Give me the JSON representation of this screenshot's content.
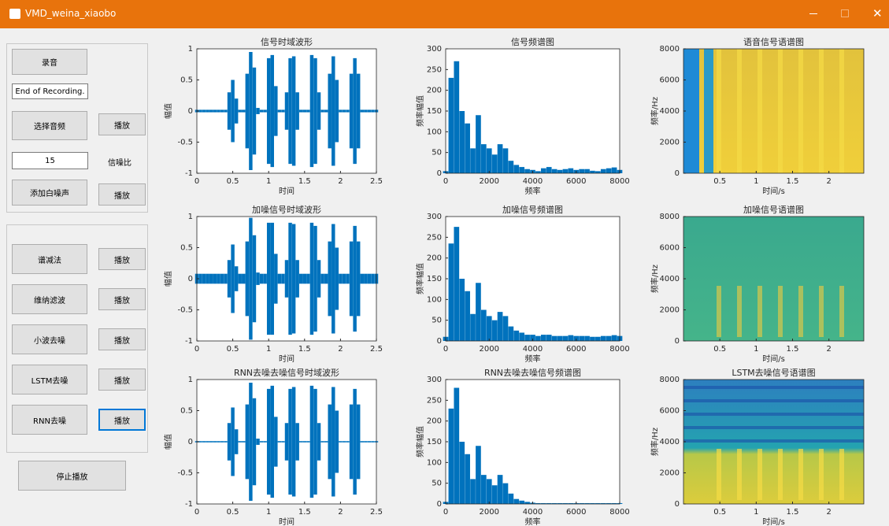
{
  "window": {
    "title": "VMD_weina_xiaobo"
  },
  "panel": {
    "record": "录音",
    "status": "End of Recording.",
    "choose": "选择音频",
    "play_original": "播放",
    "snr_value": "15",
    "snr_label": "信噪比",
    "add_noise": "添加白噪声",
    "play_noisy": "播放",
    "methods": [
      {
        "label": "谱减法",
        "play": "播放"
      },
      {
        "label": "维纳滤波",
        "play": "播放"
      },
      {
        "label": "小波去噪",
        "play": "播放"
      },
      {
        "label": "LSTM去噪",
        "play": "播放"
      },
      {
        "label": "RNN去噪",
        "play": "播放"
      }
    ],
    "stop": "停止播放"
  },
  "chart_data": [
    {
      "type": "wave",
      "title": "信号时域波形",
      "xlabel": "时间",
      "ylabel": "幅值",
      "color": "#0072bd",
      "xlim": [
        0,
        2.5
      ],
      "ylim": [
        -1,
        1
      ],
      "xticks": [
        0,
        0.5,
        1,
        1.5,
        2,
        2.5
      ],
      "yticks": [
        -1,
        -0.5,
        0,
        0.5,
        1
      ],
      "x": [
        0,
        0.05,
        0.1,
        0.15,
        0.2,
        0.25,
        0.3,
        0.35,
        0.4,
        0.45,
        0.5,
        0.55,
        0.6,
        0.65,
        0.7,
        0.75,
        0.8,
        0.85,
        0.9,
        0.95,
        1,
        1.05,
        1.1,
        1.15,
        1.2,
        1.25,
        1.3,
        1.35,
        1.4,
        1.45,
        1.5,
        1.55,
        1.6,
        1.65,
        1.7,
        1.75,
        1.8,
        1.85,
        1.9,
        1.95,
        2,
        2.05,
        2.1,
        2.15,
        2.2,
        2.25,
        2.3,
        2.35,
        2.4,
        2.45,
        2.5
      ],
      "values": [
        0.02,
        0.02,
        0.02,
        0.02,
        0.02,
        0.02,
        0.02,
        0.02,
        0.02,
        0.3,
        0.5,
        0.2,
        0.02,
        0.02,
        0.6,
        0.95,
        0.7,
        0.05,
        0.02,
        0.02,
        0.85,
        0.9,
        0.4,
        0.02,
        0.02,
        0.3,
        0.85,
        0.88,
        0.3,
        0.02,
        0.02,
        0.02,
        0.9,
        0.85,
        0.3,
        0.02,
        0.02,
        0.6,
        0.88,
        0.5,
        0.02,
        0.02,
        0.02,
        0.6,
        0.85,
        0.6,
        0.02,
        0.02,
        0.02,
        0.02,
        0.02
      ]
    },
    {
      "type": "spectrum",
      "title": "信号频谱图",
      "xlabel": "频率",
      "ylabel": "频率幅值",
      "color": "#0072bd",
      "xlim": [
        0,
        8000
      ],
      "ylim": [
        0,
        300
      ],
      "xticks": [
        0,
        2000,
        4000,
        6000,
        8000
      ],
      "yticks": [
        0,
        50,
        100,
        150,
        200,
        250,
        300
      ],
      "x": [
        0,
        250,
        500,
        750,
        1000,
        1250,
        1500,
        1750,
        2000,
        2250,
        2500,
        2750,
        3000,
        3250,
        3500,
        3750,
        4000,
        4250,
        4500,
        4750,
        5000,
        5250,
        5500,
        5750,
        6000,
        6250,
        6500,
        6750,
        7000,
        7250,
        7500,
        7750,
        8000
      ],
      "values": [
        5,
        230,
        270,
        150,
        120,
        60,
        140,
        70,
        60,
        45,
        70,
        60,
        30,
        20,
        15,
        10,
        8,
        5,
        12,
        15,
        10,
        8,
        10,
        12,
        8,
        10,
        10,
        6,
        5,
        10,
        12,
        14,
        8
      ]
    },
    {
      "type": "spectrogram",
      "title": "语音信号语谱图",
      "xlabel": "时间/s",
      "ylabel": "频率/Hz",
      "xlim": [
        0,
        2.48
      ],
      "ylim": [
        0,
        8000
      ],
      "xticks": [
        0.5,
        1,
        1.5,
        2
      ],
      "yticks": [
        0,
        2000,
        4000,
        6000,
        8000
      ]
    },
    {
      "type": "wave",
      "title": "加噪信号时域波形",
      "xlabel": "时间",
      "ylabel": "幅值",
      "color": "#0072bd",
      "xlim": [
        0,
        2.5
      ],
      "ylim": [
        -1,
        1
      ],
      "xticks": [
        0,
        0.5,
        1,
        1.5,
        2,
        2.5
      ],
      "yticks": [
        -1,
        -0.5,
        0,
        0.5,
        1
      ],
      "x": [
        0,
        0.05,
        0.1,
        0.15,
        0.2,
        0.25,
        0.3,
        0.35,
        0.4,
        0.45,
        0.5,
        0.55,
        0.6,
        0.65,
        0.7,
        0.75,
        0.8,
        0.85,
        0.9,
        0.95,
        1,
        1.05,
        1.1,
        1.15,
        1.2,
        1.25,
        1.3,
        1.35,
        1.4,
        1.45,
        1.5,
        1.55,
        1.6,
        1.65,
        1.7,
        1.75,
        1.8,
        1.85,
        1.9,
        1.95,
        2,
        2.05,
        2.1,
        2.15,
        2.2,
        2.25,
        2.3,
        2.35,
        2.4,
        2.45,
        2.5
      ],
      "values": [
        0.08,
        0.08,
        0.08,
        0.08,
        0.08,
        0.08,
        0.08,
        0.08,
        0.08,
        0.3,
        0.55,
        0.2,
        0.08,
        0.08,
        0.6,
        0.98,
        0.7,
        0.1,
        0.08,
        0.08,
        0.9,
        0.9,
        0.4,
        0.08,
        0.08,
        0.3,
        0.9,
        0.88,
        0.3,
        0.08,
        0.08,
        0.08,
        0.9,
        0.85,
        0.3,
        0.08,
        0.08,
        0.6,
        0.88,
        0.5,
        0.08,
        0.08,
        0.08,
        0.6,
        0.85,
        0.6,
        0.08,
        0.08,
        0.08,
        0.08,
        0.08
      ]
    },
    {
      "type": "spectrum",
      "title": "加噪信号频谱图",
      "xlabel": "频率",
      "ylabel": "频率幅值",
      "color": "#0072bd",
      "xlim": [
        0,
        8000
      ],
      "ylim": [
        0,
        300
      ],
      "xticks": [
        0,
        2000,
        4000,
        6000,
        8000
      ],
      "yticks": [
        0,
        50,
        100,
        150,
        200,
        250,
        300
      ],
      "x": [
        0,
        250,
        500,
        750,
        1000,
        1250,
        1500,
        1750,
        2000,
        2250,
        2500,
        2750,
        3000,
        3250,
        3500,
        3750,
        4000,
        4250,
        4500,
        4750,
        5000,
        5250,
        5500,
        5750,
        6000,
        6250,
        6500,
        6750,
        7000,
        7250,
        7500,
        7750,
        8000
      ],
      "values": [
        10,
        235,
        275,
        150,
        120,
        65,
        140,
        75,
        60,
        50,
        70,
        60,
        35,
        25,
        20,
        15,
        15,
        12,
        15,
        15,
        12,
        12,
        12,
        14,
        12,
        12,
        12,
        10,
        10,
        12,
        12,
        14,
        12
      ]
    },
    {
      "type": "spectrogram",
      "title": "加噪信号语谱图",
      "xlabel": "时间/s",
      "ylabel": "频率/Hz",
      "xlim": [
        0,
        2.48
      ],
      "ylim": [
        0,
        8000
      ],
      "xticks": [
        0.5,
        1,
        1.5,
        2
      ],
      "yticks": [
        0,
        2000,
        4000,
        6000,
        8000
      ]
    },
    {
      "type": "wave",
      "title": "RNN去噪去噪信号时域波形",
      "xlabel": "时间",
      "ylabel": "幅值",
      "color": "#0072bd",
      "xlim": [
        0,
        2.5
      ],
      "ylim": [
        -1,
        1
      ],
      "xticks": [
        0,
        0.5,
        1,
        1.5,
        2,
        2.5
      ],
      "yticks": [
        -1,
        -0.5,
        0,
        0.5,
        1
      ],
      "x": [
        0,
        0.05,
        0.1,
        0.15,
        0.2,
        0.25,
        0.3,
        0.35,
        0.4,
        0.45,
        0.5,
        0.55,
        0.6,
        0.65,
        0.7,
        0.75,
        0.8,
        0.85,
        0.9,
        0.95,
        1,
        1.05,
        1.1,
        1.15,
        1.2,
        1.25,
        1.3,
        1.35,
        1.4,
        1.45,
        1.5,
        1.55,
        1.6,
        1.65,
        1.7,
        1.75,
        1.8,
        1.85,
        1.9,
        1.95,
        2,
        2.05,
        2.1,
        2.15,
        2.2,
        2.25,
        2.3,
        2.35,
        2.4,
        2.45,
        2.5
      ],
      "values": [
        0.01,
        0.01,
        0.01,
        0.01,
        0.01,
        0.01,
        0.01,
        0.01,
        0.01,
        0.3,
        0.55,
        0.2,
        0.01,
        0.01,
        0.6,
        0.95,
        0.7,
        0.05,
        0.01,
        0.01,
        0.85,
        0.9,
        0.4,
        0.01,
        0.01,
        0.3,
        0.85,
        0.88,
        0.3,
        0.01,
        0.01,
        0.01,
        0.9,
        0.85,
        0.3,
        0.01,
        0.01,
        0.6,
        0.88,
        0.5,
        0.01,
        0.01,
        0.01,
        0.6,
        0.85,
        0.6,
        0.01,
        0.01,
        0.01,
        0.01,
        0.01
      ]
    },
    {
      "type": "spectrum",
      "title": "RNN去噪去噪信号频谱图",
      "xlabel": "频率",
      "ylabel": "频率幅值",
      "color": "#0072bd",
      "xlim": [
        0,
        8000
      ],
      "ylim": [
        0,
        300
      ],
      "xticks": [
        0,
        2000,
        4000,
        6000,
        8000
      ],
      "yticks": [
        0,
        50,
        100,
        150,
        200,
        250,
        300
      ],
      "x": [
        0,
        250,
        500,
        750,
        1000,
        1250,
        1500,
        1750,
        2000,
        2250,
        2500,
        2750,
        3000,
        3250,
        3500,
        3750,
        4000,
        4250,
        4500,
        4750,
        5000,
        5250,
        5500,
        5750,
        6000,
        6250,
        6500,
        6750,
        7000,
        7250,
        7500,
        7750,
        8000
      ],
      "values": [
        5,
        230,
        280,
        150,
        120,
        60,
        140,
        70,
        60,
        45,
        70,
        50,
        25,
        12,
        8,
        5,
        3,
        2,
        2,
        2,
        2,
        2,
        2,
        2,
        2,
        2,
        2,
        2,
        2,
        2,
        2,
        2,
        2
      ]
    },
    {
      "type": "spectrogram",
      "title": "LSTM去噪信号语谱图",
      "xlabel": "时间/s",
      "ylabel": "频率/Hz",
      "xlim": [
        0,
        2.48
      ],
      "ylim": [
        0,
        8000
      ],
      "xticks": [
        0.5,
        1,
        1.5,
        2
      ],
      "yticks": [
        0,
        2000,
        4000,
        6000,
        8000
      ]
    }
  ]
}
